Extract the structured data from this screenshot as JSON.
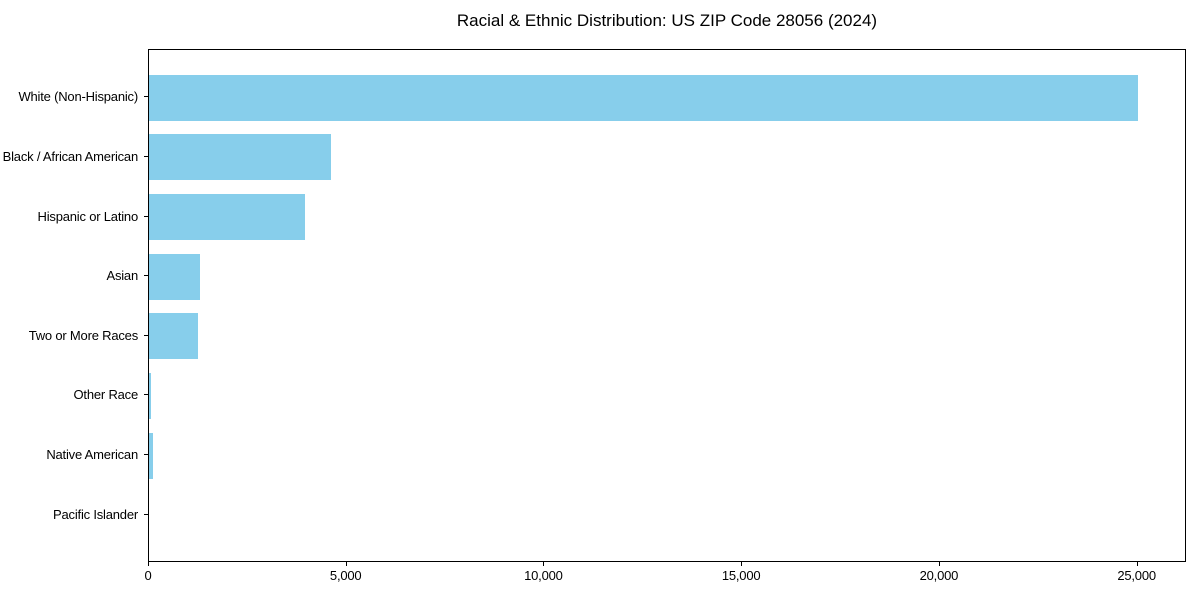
{
  "chart_data": {
    "type": "bar",
    "orientation": "horizontal",
    "title": "Racial & Ethnic Distribution: US ZIP Code 28056 (2024)",
    "categories": [
      "White (Non-Hispanic)",
      "Black / African American",
      "Hispanic or Latino",
      "Asian",
      "Two or More Races",
      "Other Race",
      "Native American",
      "Pacific Islander"
    ],
    "values": [
      25000,
      4600,
      3940,
      1280,
      1230,
      60,
      90,
      0
    ],
    "xlabel": "",
    "ylabel": "",
    "xlim": [
      0,
      26250
    ],
    "x_ticks": [
      0,
      5000,
      10000,
      15000,
      20000,
      25000
    ],
    "x_tick_labels": [
      "0",
      "5,000",
      "10,000",
      "15,000",
      "20,000",
      "25,000"
    ],
    "bar_color": "#87CEEB",
    "background_color": "#ffffff",
    "text_color": "#000000",
    "grid": false,
    "legend": null
  }
}
